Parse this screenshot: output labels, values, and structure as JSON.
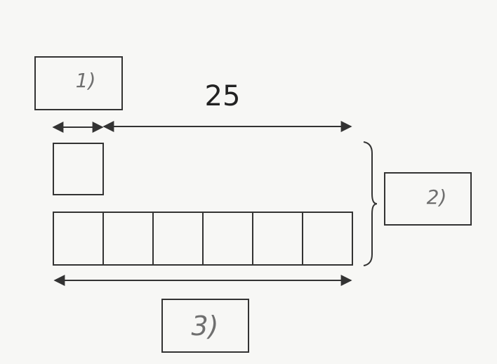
{
  "diagram": {
    "top_dimension": {
      "label": "25"
    },
    "answer_boxes": [
      {
        "label": "1)"
      },
      {
        "label": "2)"
      },
      {
        "label": "3)"
      }
    ],
    "small_square_count": 1,
    "row_square_count": 6
  }
}
